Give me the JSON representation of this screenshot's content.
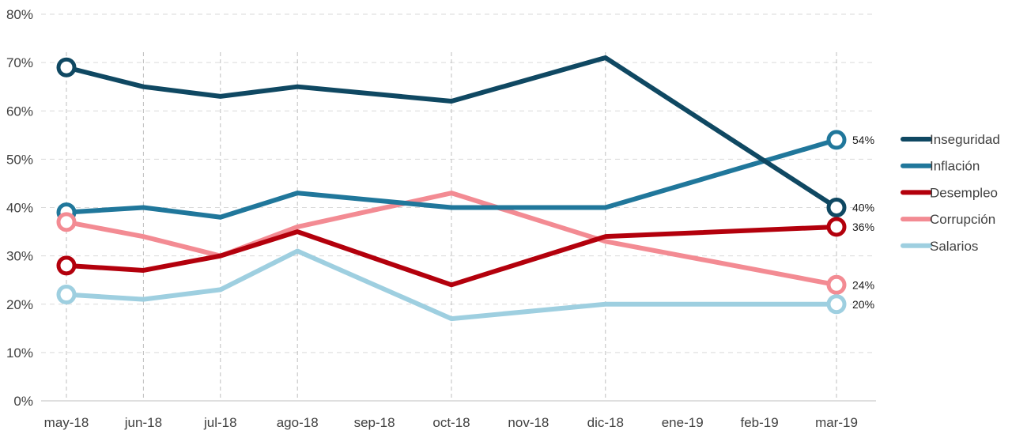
{
  "chart_data": {
    "type": "line",
    "categories": [
      "may-18",
      "jun-18",
      "jul-18",
      "ago-18",
      "sep-18",
      "oct-18",
      "nov-18",
      "dic-18",
      "ene-19",
      "feb-19",
      "mar-19"
    ],
    "ylim": [
      0,
      80
    ],
    "y_ticks": [
      "0%",
      "10%",
      "20%",
      "30%",
      "40%",
      "50%",
      "60%",
      "70%",
      "80%"
    ],
    "grid": true,
    "legend_position": "right",
    "series": [
      {
        "name": "Inseguridad",
        "color": "#0f4862",
        "values": [
          69,
          65,
          63,
          65,
          null,
          62,
          null,
          71,
          null,
          null,
          40
        ],
        "end_label": "40%"
      },
      {
        "name": "Inflación",
        "color": "#20779b",
        "values": [
          39,
          40,
          38,
          43,
          null,
          40,
          null,
          40,
          null,
          null,
          54
        ],
        "end_label": "54%"
      },
      {
        "name": "Desempleo",
        "color": "#b3000c",
        "values": [
          28,
          27,
          30,
          35,
          null,
          24,
          null,
          34,
          null,
          null,
          36
        ],
        "end_label": "36%"
      },
      {
        "name": "Corrupción",
        "color": "#f38b93",
        "values": [
          37,
          34,
          30,
          36,
          null,
          43,
          null,
          33,
          null,
          null,
          24
        ],
        "end_label": "24%"
      },
      {
        "name": "Salarios",
        "color": "#9ecfe0",
        "values": [
          22,
          21,
          23,
          31,
          null,
          17,
          null,
          20,
          null,
          null,
          20
        ],
        "end_label": "20%"
      }
    ]
  }
}
